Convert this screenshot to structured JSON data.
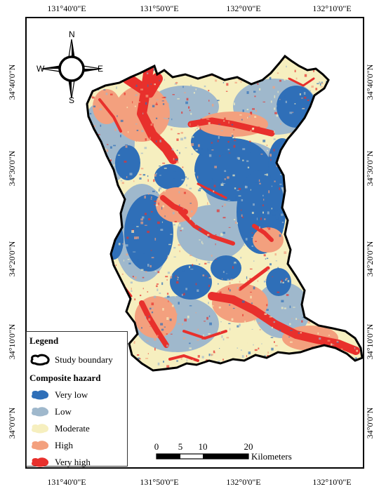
{
  "grid": {
    "top_labels": [
      "131°40'0\"E",
      "131°50'0\"E",
      "132°0'0\"E",
      "132°10'0\"E"
    ],
    "bottom_labels": [
      "131°40'0\"E",
      "131°50'0\"E",
      "132°0'0\"E",
      "132°10'0\"E"
    ],
    "left_labels": [
      "34°40'0\"N",
      "34°30'0\"N",
      "34°20'0\"N",
      "34°10'0\"N",
      "34°0'0\"N"
    ],
    "right_labels": [
      "34°40'0\"N",
      "34°30'0\"N",
      "34°20'0\"N",
      "34°10'0\"N",
      "34°0'0\"N"
    ]
  },
  "north_arrow": {
    "n": "N",
    "s": "S",
    "e": "E",
    "w": "W"
  },
  "legend": {
    "title": "Legend",
    "boundary_label": "Study boundary",
    "category_title": "Composite hazard",
    "classes": [
      {
        "label": "Very low",
        "color": "#2f6fb8"
      },
      {
        "label": "Low",
        "color": "#9fb8cc"
      },
      {
        "label": "Moderate",
        "color": "#f6efbf"
      },
      {
        "label": "High",
        "color": "#f3a07e"
      },
      {
        "label": "Very high",
        "color": "#e8302c"
      }
    ]
  },
  "scalebar": {
    "ticks": [
      "0",
      "5",
      "10",
      "20"
    ],
    "unit": "Kilometers"
  }
}
